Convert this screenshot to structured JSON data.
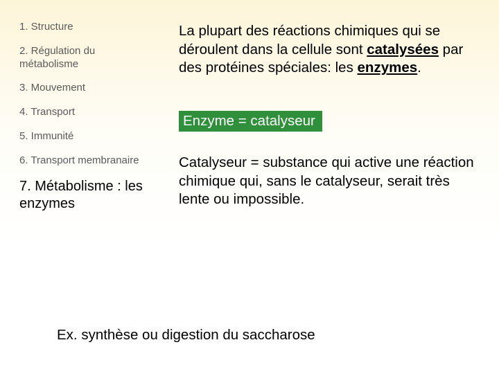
{
  "background": {
    "gradient_top": "#fdf5d8",
    "gradient_bottom": "#ffffff"
  },
  "sidebar": {
    "items": [
      {
        "label": "1. Structure"
      },
      {
        "label": "2. Régulation du métabolisme"
      },
      {
        "label": "3. Mouvement"
      },
      {
        "label": "4. Transport"
      },
      {
        "label": "5. Immunité"
      },
      {
        "label": "6. Transport membranaire"
      },
      {
        "label": "7. Métabolisme : les enzymes"
      }
    ],
    "inactive_color": "#5a5a5a",
    "inactive_fontsize": 15,
    "active_color": "#000000",
    "active_fontsize": 20,
    "active_index": 6
  },
  "content": {
    "para1_parts": {
      "t1": "La plupart des réactions chimiques qui se déroulent dans la cellule sont ",
      "t2": "catalysées",
      "t3": " par des protéines spéciales: les ",
      "t4": "enzymes",
      "t5": "."
    },
    "highlight": {
      "text": "Enzyme = catalyseur",
      "bg_color": "#2f8f3a",
      "text_color": "#ffffff"
    },
    "para2": "Catalyseur = substance qui active une réaction chimique qui, sans le catalyseur, serait très lente ou impossible.",
    "example": "Ex. synthèse ou digestion du saccharose",
    "body_fontsize": 20.5,
    "body_color": "#000000"
  }
}
